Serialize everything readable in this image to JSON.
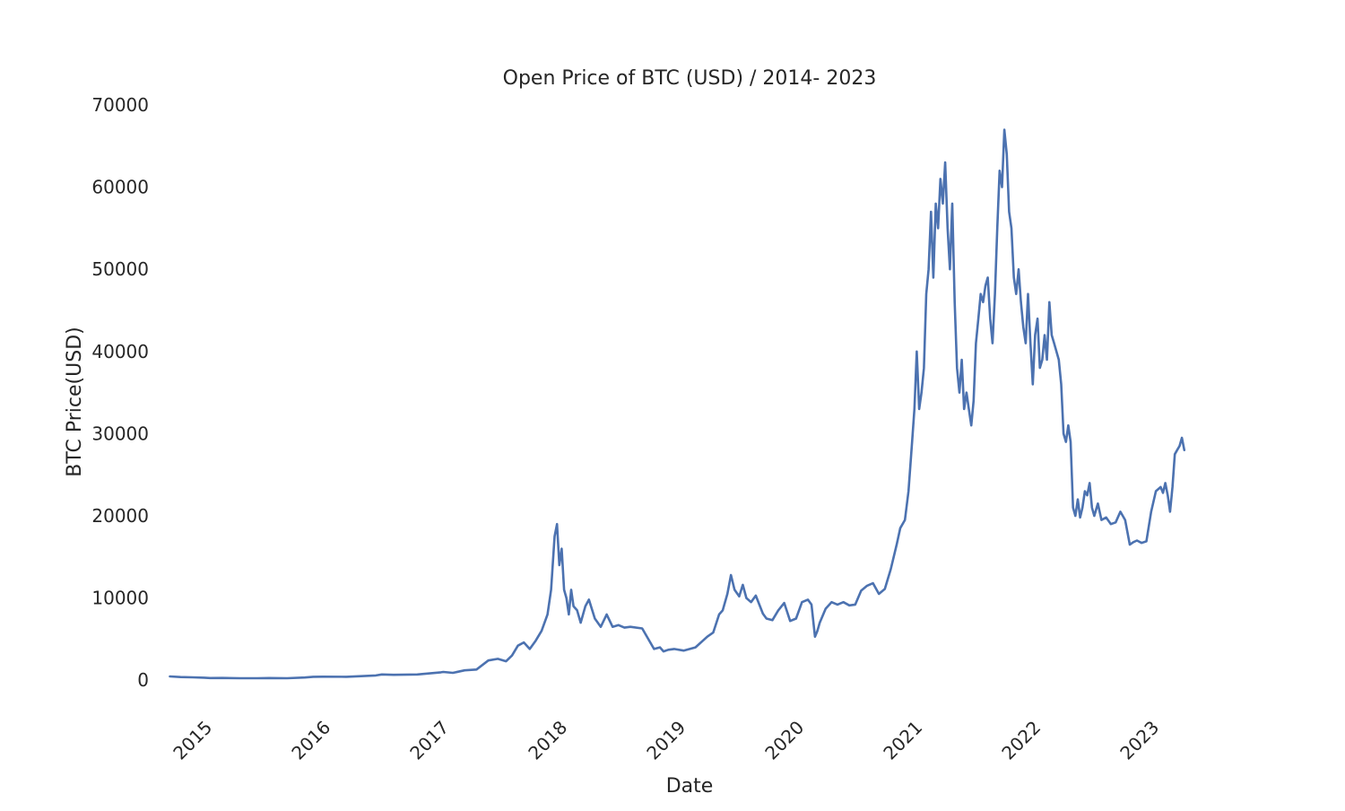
{
  "chart_data": {
    "type": "line",
    "title": "Open Price of BTC (USD) / 2014- 2023",
    "xlabel": "Date",
    "ylabel": "BTC Price(USD)",
    "xlim": [
      2014.6,
      2023.6
    ],
    "ylim": [
      -5000,
      70000
    ],
    "grid": false,
    "y_ticks": [
      0,
      10000,
      20000,
      30000,
      40000,
      50000,
      60000,
      70000
    ],
    "x_ticks": [
      2015,
      2016,
      2017,
      2018,
      2019,
      2020,
      2021,
      2022,
      2023
    ],
    "x_tick_labels": [
      "2015",
      "2016",
      "2017",
      "2018",
      "2019",
      "2020",
      "2021",
      "2022",
      "2023"
    ],
    "line_color": "#4c72b0",
    "series": [
      {
        "name": "Open",
        "x": [
          2014.71,
          2014.8,
          2014.9,
          2015.0,
          2015.05,
          2015.15,
          2015.3,
          2015.45,
          2015.55,
          2015.7,
          2015.85,
          2015.92,
          2016.0,
          2016.2,
          2016.45,
          2016.5,
          2016.6,
          2016.8,
          2017.0,
          2017.02,
          2017.1,
          2017.2,
          2017.3,
          2017.4,
          2017.48,
          2017.55,
          2017.6,
          2017.65,
          2017.7,
          2017.75,
          2017.8,
          2017.85,
          2017.9,
          2017.93,
          2017.96,
          2017.98,
          2018.0,
          2018.02,
          2018.04,
          2018.06,
          2018.08,
          2018.1,
          2018.12,
          2018.15,
          2018.18,
          2018.22,
          2018.25,
          2018.3,
          2018.35,
          2018.4,
          2018.45,
          2018.5,
          2018.55,
          2018.6,
          2018.7,
          2018.8,
          2018.85,
          2018.88,
          2018.92,
          2018.97,
          2019.05,
          2019.15,
          2019.25,
          2019.3,
          2019.35,
          2019.38,
          2019.42,
          2019.45,
          2019.48,
          2019.52,
          2019.55,
          2019.58,
          2019.62,
          2019.66,
          2019.72,
          2019.75,
          2019.8,
          2019.85,
          2019.9,
          2019.95,
          2020.0,
          2020.05,
          2020.1,
          2020.13,
          2020.16,
          2020.18,
          2020.2,
          2020.25,
          2020.3,
          2020.35,
          2020.4,
          2020.45,
          2020.5,
          2020.55,
          2020.6,
          2020.65,
          2020.7,
          2020.75,
          2020.8,
          2020.85,
          2020.88,
          2020.92,
          2020.95,
          2020.98,
          2021.0,
          2021.02,
          2021.04,
          2021.06,
          2021.08,
          2021.1,
          2021.12,
          2021.14,
          2021.16,
          2021.18,
          2021.2,
          2021.22,
          2021.24,
          2021.26,
          2021.28,
          2021.3,
          2021.32,
          2021.34,
          2021.36,
          2021.38,
          2021.4,
          2021.42,
          2021.44,
          2021.46,
          2021.48,
          2021.5,
          2021.52,
          2021.54,
          2021.56,
          2021.58,
          2021.6,
          2021.62,
          2021.64,
          2021.66,
          2021.68,
          2021.7,
          2021.72,
          2021.74,
          2021.76,
          2021.78,
          2021.8,
          2021.82,
          2021.84,
          2021.86,
          2021.88,
          2021.9,
          2021.92,
          2021.94,
          2021.96,
          2021.98,
          2022.0,
          2022.02,
          2022.04,
          2022.06,
          2022.08,
          2022.1,
          2022.12,
          2022.14,
          2022.16,
          2022.18,
          2022.2,
          2022.22,
          2022.24,
          2022.26,
          2022.28,
          2022.3,
          2022.32,
          2022.34,
          2022.36,
          2022.38,
          2022.4,
          2022.42,
          2022.44,
          2022.46,
          2022.48,
          2022.5,
          2022.52,
          2022.55,
          2022.58,
          2022.62,
          2022.66,
          2022.7,
          2022.74,
          2022.78,
          2022.82,
          2022.85,
          2022.88,
          2022.92,
          2022.96,
          2023.0,
          2023.04,
          2023.08,
          2023.1,
          2023.12,
          2023.14,
          2023.16,
          2023.18,
          2023.2,
          2023.22,
          2023.24,
          2023.26,
          2023.28
        ],
        "values": [
          460,
          380,
          350,
          310,
          260,
          270,
          240,
          240,
          260,
          240,
          330,
          420,
          430,
          410,
          580,
          700,
          650,
          700,
          960,
          1000,
          900,
          1200,
          1300,
          2400,
          2600,
          2300,
          3000,
          4200,
          4600,
          3800,
          4800,
          6000,
          8000,
          11000,
          17500,
          19000,
          14000,
          16000,
          11000,
          10000,
          8000,
          11000,
          9000,
          8500,
          7000,
          9000,
          9800,
          7500,
          6500,
          8000,
          6500,
          6700,
          6400,
          6500,
          6300,
          3800,
          4000,
          3500,
          3700,
          3800,
          3600,
          4000,
          5300,
          5800,
          8000,
          8500,
          10500,
          12800,
          11000,
          10200,
          11600,
          10000,
          9500,
          10300,
          8100,
          7500,
          7300,
          8500,
          9400,
          7200,
          7500,
          9500,
          9800,
          9200,
          5300,
          6000,
          7000,
          8700,
          9500,
          9200,
          9500,
          9100,
          9200,
          10900,
          11500,
          11800,
          10500,
          11100,
          13500,
          16500,
          18500,
          19500,
          23000,
          29000,
          33000,
          40000,
          33000,
          35000,
          38000,
          47000,
          50000,
          57000,
          49000,
          58000,
          55000,
          61000,
          58000,
          63000,
          55000,
          50000,
          58000,
          46000,
          38000,
          35000,
          39000,
          33000,
          35000,
          33000,
          31000,
          34000,
          41000,
          44000,
          47000,
          46000,
          48000,
          49000,
          44000,
          41000,
          47000,
          55000,
          62000,
          60000,
          67000,
          64000,
          57000,
          55000,
          49000,
          47000,
          50000,
          46000,
          43000,
          41000,
          47000,
          41000,
          36000,
          42000,
          44000,
          38000,
          39000,
          42000,
          39000,
          46000,
          42000,
          41000,
          40000,
          39000,
          36000,
          30000,
          29000,
          31000,
          29000,
          21000,
          20000,
          22000,
          19800,
          21000,
          23000,
          22500,
          24000,
          21000,
          20000,
          21500,
          19500,
          19800,
          19000,
          19200,
          20500,
          19500,
          16500,
          16800,
          17000,
          16700,
          16900,
          20500,
          23000,
          23500,
          22800,
          24000,
          22500,
          20500,
          23500,
          27500,
          28000,
          28500,
          29500,
          28000
        ]
      }
    ]
  }
}
